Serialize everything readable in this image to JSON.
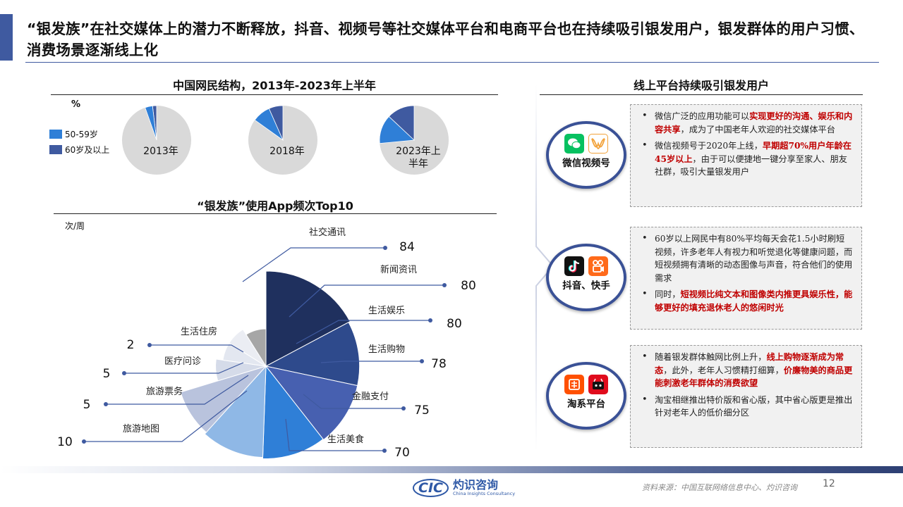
{
  "page": {
    "title": "“银发族”在社交媒体上的潜力不断释放，抖音、视频号等社交媒体平台和电商平台也在持续吸引银发用户，银发群体的用户习惯、消费场景逐渐线上化",
    "page_number": "12",
    "source": "资料来源：中国互联网络信息中心、灼识咨询"
  },
  "left": {
    "pie_section_title": "中国网民结构，2013年-2023年上半年",
    "rose_section_title": "“银发族”使用App频次Top10"
  },
  "right": {
    "section_title": "线上平台持续吸引银发用户",
    "cards": [
      {
        "badge_label": "微信视频号",
        "icons": [
          "wechat-icon",
          "channels-icon"
        ],
        "bullets": [
          [
            {
              "t": "微信广泛的应用功能可以"
            },
            {
              "t": "实现更好的沟通、娱乐和内容共享",
              "hl": true
            },
            {
              "t": "，成为了中国老年人欢迎的社交媒体平台"
            }
          ],
          [
            {
              "t": "微信视频号于2020年上线，"
            },
            {
              "t": "早期超70%用户年龄在45岁以上",
              "hl": true
            },
            {
              "t": "，由于可以便捷地一键分享至家人、朋友社群，吸引大量银发用户"
            }
          ]
        ]
      },
      {
        "badge_label": "抖音、快手",
        "icons": [
          "douyin-icon",
          "kuaishou-icon"
        ],
        "bullets": [
          [
            {
              "t": "60岁以上网民中有80%平均每天会花1.5小时刷短视频，许多老年人有视力和听觉退化等健康问题，而短视频拥有清晰的动态图像与声音，符合他们的使用需求"
            }
          ],
          [
            {
              "t": "同时，"
            },
            {
              "t": "短视频比纯文本和图像类内推更具娱乐性，能够更好的填充退休老人的悠闲时光",
              "hl": true
            }
          ]
        ]
      },
      {
        "badge_label": "淘系平台",
        "icons": [
          "taobao-icon",
          "tmall-icon"
        ],
        "bullets": [
          [
            {
              "t": "随着银发群体触网比例上升，"
            },
            {
              "t": "线上购物逐渐成为常态",
              "hl": true
            },
            {
              "t": "，此外，老年人习惯精打细算，"
            },
            {
              "t": "价廉物美的商品更能刺激老年群体的消费欲望",
              "hl": true
            }
          ],
          [
            {
              "t": "淘宝相继推出特价版和省心版，其中省心版更是推出针对老年人的低价细分区"
            }
          ]
        ]
      }
    ]
  },
  "colors": {
    "accent": "#3f5aa0",
    "pie_rest": "#d9d9d9",
    "series_50_59": "#2f7fd7",
    "series_60_plus": "#3f5aa0",
    "highlight": "#c00000"
  },
  "logo": {
    "mark": "CIC",
    "name": "灼识咨询",
    "sub": "China Insights Consultancy"
  },
  "chart_data": [
    {
      "type": "pie",
      "unit_label": "%",
      "legend": [
        "50-59岁",
        "60岁及以上"
      ],
      "legend_position": "left",
      "categories": [
        "2013年",
        "2018年",
        "2023年上半年"
      ],
      "series": [
        {
          "name": "50-59岁",
          "values": [
            3.5,
            8.5,
            13.5
          ]
        },
        {
          "name": "60岁及以上",
          "values": [
            1.9,
            6.6,
            13.0
          ]
        }
      ]
    },
    {
      "type": "rose",
      "unit_label": "次/周",
      "categories": [
        "社交通讯",
        "新闻资讯",
        "生活娱乐",
        "生活购物",
        "金融支付",
        "生活美食",
        "旅游地图",
        "旅游票务",
        "医疗问诊",
        "生活住房"
      ],
      "values": [
        84,
        80,
        80,
        78,
        75,
        70,
        10,
        5,
        5,
        2
      ]
    }
  ]
}
